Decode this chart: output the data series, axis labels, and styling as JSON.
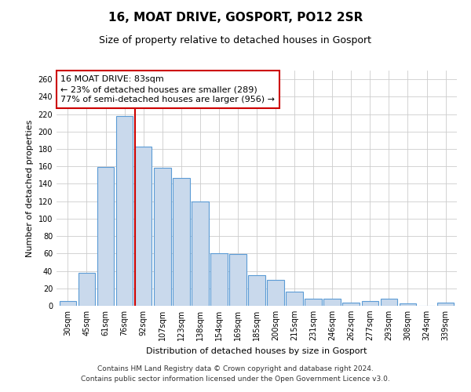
{
  "title": "16, MOAT DRIVE, GOSPORT, PO12 2SR",
  "subtitle": "Size of property relative to detached houses in Gosport",
  "xlabel": "Distribution of detached houses by size in Gosport",
  "ylabel": "Number of detached properties",
  "bar_labels": [
    "30sqm",
    "45sqm",
    "61sqm",
    "76sqm",
    "92sqm",
    "107sqm",
    "123sqm",
    "138sqm",
    "154sqm",
    "169sqm",
    "185sqm",
    "200sqm",
    "215sqm",
    "231sqm",
    "246sqm",
    "262sqm",
    "277sqm",
    "293sqm",
    "308sqm",
    "324sqm",
    "339sqm"
  ],
  "bar_values": [
    5,
    38,
    159,
    218,
    183,
    158,
    147,
    120,
    60,
    59,
    35,
    30,
    16,
    8,
    8,
    4,
    5,
    8,
    3,
    0,
    4
  ],
  "bar_color": "#c9d9ec",
  "bar_edgecolor": "#5b9bd5",
  "vline_index": 4,
  "vline_color": "#cc0000",
  "annotation_title": "16 MOAT DRIVE: 83sqm",
  "annotation_line1": "← 23% of detached houses are smaller (289)",
  "annotation_line2": "77% of semi-detached houses are larger (956) →",
  "annotation_box_facecolor": "#ffffff",
  "annotation_box_edgecolor": "#cc0000",
  "ylim": [
    0,
    270
  ],
  "yticks": [
    0,
    20,
    40,
    60,
    80,
    100,
    120,
    140,
    160,
    180,
    200,
    220,
    240,
    260
  ],
  "footer1": "Contains HM Land Registry data © Crown copyright and database right 2024.",
  "footer2": "Contains public sector information licensed under the Open Government Licence v3.0.",
  "background_color": "#ffffff",
  "grid_color": "#cccccc",
  "title_fontsize": 11,
  "subtitle_fontsize": 9,
  "xlabel_fontsize": 8,
  "ylabel_fontsize": 8,
  "tick_fontsize": 7,
  "annotation_fontsize": 8,
  "footer_fontsize": 6.5
}
